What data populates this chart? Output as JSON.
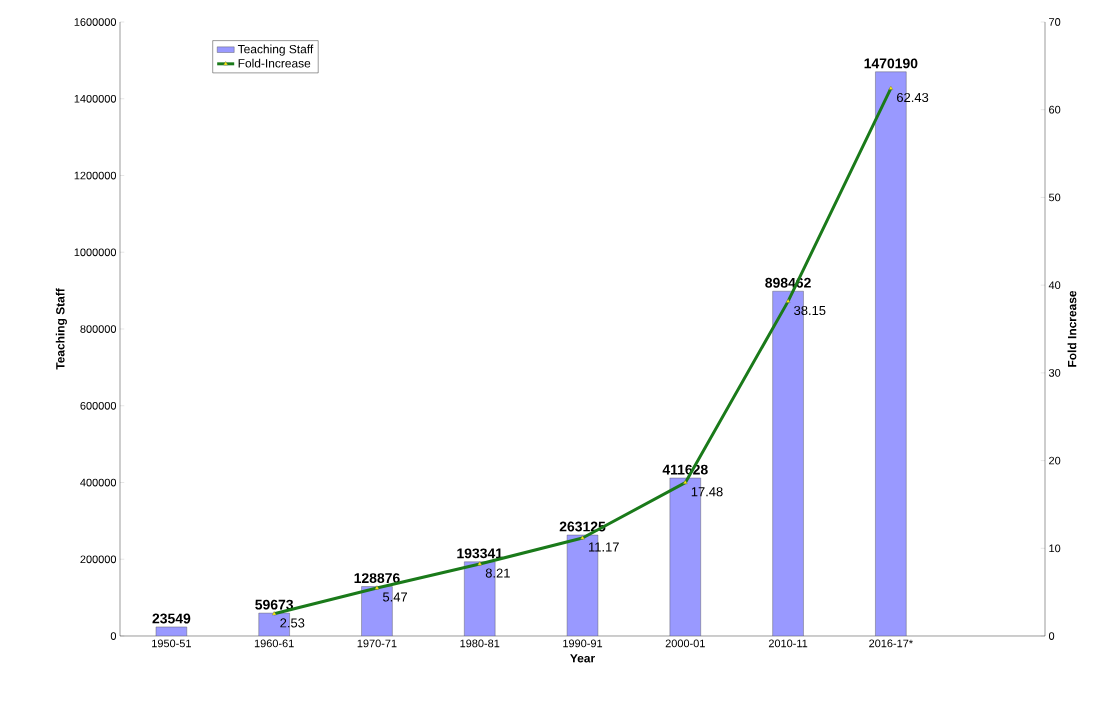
{
  "chart_data": {
    "type": "bar",
    "xlabel": "Year",
    "ylabel": "Teaching Staff",
    "y2label": "Fold Increase",
    "categories": [
      "1950-51",
      "1960-61",
      "1970-71",
      "1980-81",
      "1990-91",
      "2000-01",
      "2010-11",
      "2016-17*",
      null
    ],
    "series": [
      {
        "name": "Teaching Staff",
        "color": "#9999ff",
        "values": [
          23549,
          59673,
          128876,
          193341,
          263125,
          411628,
          898462,
          1470190,
          null
        ]
      },
      {
        "name": "Fold-Increase",
        "type": "line",
        "axis": "y2",
        "color": "#1a7a1a",
        "marker": "triangle",
        "values": [
          null,
          2.53,
          5.47,
          8.21,
          11.17,
          17.48,
          38.15,
          62.43,
          null
        ]
      }
    ],
    "ylim": [
      0,
      1600000
    ],
    "yticks": [
      0,
      200000,
      400000,
      600000,
      800000,
      1000000,
      1200000,
      1400000,
      1600000
    ],
    "y2lim": [
      0,
      70
    ],
    "y2ticks": [
      0,
      10,
      20,
      30,
      40,
      50,
      60,
      70
    ],
    "data_labels": true,
    "legend": "top left",
    "grid": false
  }
}
